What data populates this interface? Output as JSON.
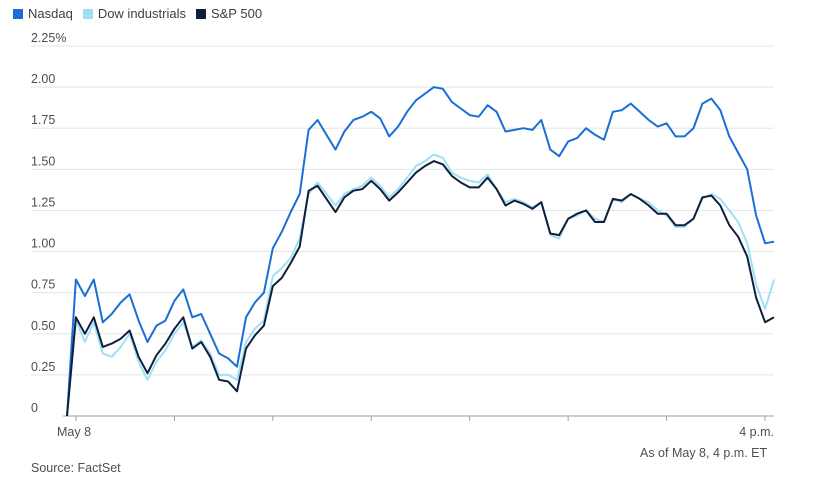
{
  "chart_data": {
    "type": "line",
    "legend_placement": "top-left",
    "series": [
      {
        "name": "Nasdaq",
        "color": "#1a6fd6",
        "values": [
          0.0,
          0.83,
          0.73,
          0.83,
          0.57,
          0.62,
          0.69,
          0.74,
          0.58,
          0.45,
          0.55,
          0.58,
          0.7,
          0.77,
          0.6,
          0.62,
          0.5,
          0.38,
          0.35,
          0.3,
          0.6,
          0.69,
          0.75,
          1.02,
          1.12,
          1.24,
          1.35,
          1.74,
          1.8,
          1.71,
          1.62,
          1.73,
          1.8,
          1.82,
          1.85,
          1.81,
          1.7,
          1.76,
          1.85,
          1.92,
          1.96,
          2.0,
          1.99,
          1.91,
          1.87,
          1.83,
          1.82,
          1.89,
          1.85,
          1.73,
          1.74,
          1.75,
          1.74,
          1.8,
          1.62,
          1.58,
          1.67,
          1.69,
          1.75,
          1.71,
          1.68,
          1.85,
          1.86,
          1.9,
          1.85,
          1.8,
          1.76,
          1.78,
          1.7,
          1.7,
          1.75,
          1.9,
          1.93,
          1.86,
          1.7,
          1.6,
          1.5,
          1.22,
          1.05,
          1.06
        ]
      },
      {
        "name": "Dow industrials",
        "color": "#9fe0f5",
        "values": [
          0.0,
          0.58,
          0.45,
          0.57,
          0.38,
          0.36,
          0.42,
          0.5,
          0.33,
          0.22,
          0.33,
          0.4,
          0.5,
          0.57,
          0.42,
          0.46,
          0.38,
          0.25,
          0.25,
          0.22,
          0.45,
          0.53,
          0.58,
          0.85,
          0.9,
          0.96,
          1.08,
          1.35,
          1.42,
          1.35,
          1.28,
          1.35,
          1.38,
          1.4,
          1.45,
          1.4,
          1.33,
          1.38,
          1.45,
          1.52,
          1.55,
          1.59,
          1.57,
          1.48,
          1.45,
          1.43,
          1.42,
          1.47,
          1.38,
          1.3,
          1.32,
          1.3,
          1.27,
          1.3,
          1.1,
          1.08,
          1.2,
          1.22,
          1.25,
          1.2,
          1.18,
          1.32,
          1.3,
          1.35,
          1.32,
          1.3,
          1.25,
          1.22,
          1.15,
          1.15,
          1.2,
          1.32,
          1.35,
          1.32,
          1.25,
          1.18,
          1.05,
          0.8,
          0.65,
          0.83
        ]
      },
      {
        "name": "S&P 500",
        "color": "#0f1f3d",
        "values": [
          0.0,
          0.6,
          0.5,
          0.6,
          0.42,
          0.44,
          0.47,
          0.52,
          0.36,
          0.26,
          0.37,
          0.44,
          0.53,
          0.6,
          0.41,
          0.45,
          0.36,
          0.22,
          0.21,
          0.15,
          0.41,
          0.49,
          0.55,
          0.79,
          0.84,
          0.93,
          1.03,
          1.37,
          1.4,
          1.32,
          1.24,
          1.33,
          1.37,
          1.38,
          1.43,
          1.38,
          1.31,
          1.36,
          1.42,
          1.48,
          1.52,
          1.55,
          1.53,
          1.46,
          1.42,
          1.39,
          1.39,
          1.45,
          1.38,
          1.28,
          1.31,
          1.29,
          1.26,
          1.3,
          1.11,
          1.1,
          1.2,
          1.23,
          1.25,
          1.18,
          1.18,
          1.32,
          1.31,
          1.35,
          1.32,
          1.28,
          1.23,
          1.23,
          1.16,
          1.16,
          1.2,
          1.33,
          1.34,
          1.28,
          1.16,
          1.09,
          0.97,
          0.72,
          0.57,
          0.6
        ]
      }
    ],
    "y_ticks": [
      {
        "value": 2.25,
        "label": "2.25%"
      },
      {
        "value": 2.0,
        "label": "2.00"
      },
      {
        "value": 1.75,
        "label": "1.75"
      },
      {
        "value": 1.5,
        "label": "1.50"
      },
      {
        "value": 1.25,
        "label": "1.25"
      },
      {
        "value": 1.0,
        "label": "1.00"
      },
      {
        "value": 0.75,
        "label": "0.75"
      },
      {
        "value": 0.5,
        "label": "0.50"
      },
      {
        "value": 0.25,
        "label": "0.25"
      },
      {
        "value": 0,
        "label": "0"
      }
    ],
    "ylim": [
      0,
      2.25
    ],
    "x_start_label": "May 8",
    "x_end_label": "4 p.m.",
    "grid": true
  },
  "footer": {
    "as_of": "As of May 8, 4 p.m. ET",
    "source": "Source: FactSet"
  }
}
